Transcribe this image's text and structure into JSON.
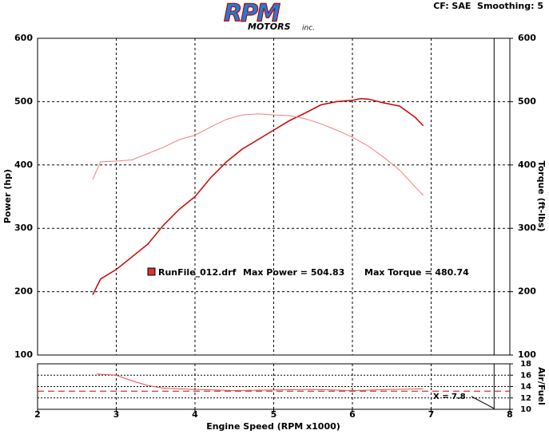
{
  "header": {
    "logo": "RPM",
    "logo_sub": "MOTORS",
    "logo_inc": "inc.",
    "settings": "CF: SAE  Smoothing: 5",
    "run_file": "RunFile_012.drf",
    "max_power": "Max Power = 504.83",
    "max_torque": "Max Torque = 480.74"
  },
  "chart_data": [
    {
      "type": "line",
      "ylabel": "Power (hp)",
      "y2label": "Torque (ft-lbs)",
      "ylim": [
        100,
        600
      ],
      "yticks": [
        100,
        200,
        300,
        400,
        500,
        600
      ],
      "y2lim": [
        100,
        600
      ],
      "y2ticks": [
        100,
        200,
        300,
        400,
        500,
        600
      ],
      "grid": true,
      "x": [
        2.7,
        2.8,
        3.0,
        3.2,
        3.4,
        3.6,
        3.8,
        4.0,
        4.2,
        4.4,
        4.6,
        4.8,
        5.0,
        5.2,
        5.4,
        5.6,
        5.8,
        6.0,
        6.1,
        6.2,
        6.4,
        6.6,
        6.8,
        6.9
      ],
      "series": [
        {
          "color": "#cc0000",
          "width": 1.5,
          "values": [
            195,
            220,
            235,
            255,
            275,
            305,
            330,
            350,
            380,
            405,
            425,
            440,
            455,
            470,
            482,
            495,
            500,
            502,
            504.83,
            504,
            498,
            493,
            475,
            462
          ]
        },
        {
          "color": "#f08080",
          "width": 1,
          "axis": "y2",
          "values": [
            377,
            405,
            406,
            408,
            418,
            428,
            440,
            447,
            460,
            472,
            479,
            480.74,
            479,
            478,
            473,
            465,
            455,
            444,
            437,
            430,
            412,
            392,
            365,
            352
          ]
        }
      ],
      "cursor_x": 7.8
    },
    {
      "type": "line",
      "xlabel": "Engine Speed (RPM x1000)",
      "y2label": "Air/Fuel",
      "xlim": [
        2,
        8
      ],
      "xticks": [
        2,
        3,
        4,
        5,
        6,
        7,
        8
      ],
      "y2lim": [
        10,
        18
      ],
      "y2ticks": [
        10,
        12,
        14,
        16,
        18
      ],
      "grid": true,
      "x": [
        2.75,
        3.0,
        3.2,
        3.4,
        3.6,
        4.0,
        4.5,
        5.0,
        5.5,
        6.0,
        6.5,
        6.9
      ],
      "series": [
        {
          "color": "#e05050",
          "axis": "y2",
          "values": [
            16.2,
            16.0,
            15.0,
            14.2,
            13.7,
            13.5,
            13.3,
            13.4,
            13.5,
            13.3,
            13.5,
            13.6
          ]
        }
      ],
      "reference": 13.2,
      "reference_color": "#cc0000",
      "cursor_x": 7.8,
      "cursor_label": "X = 7.8"
    }
  ]
}
